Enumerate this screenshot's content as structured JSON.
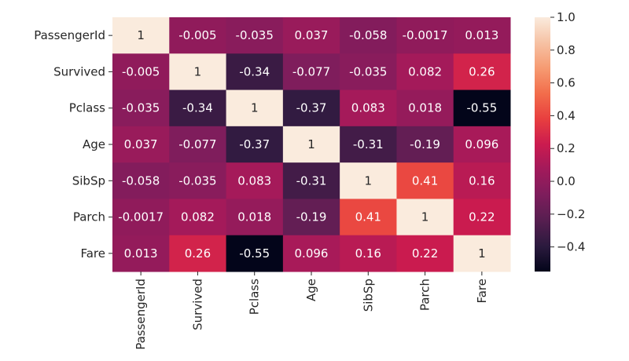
{
  "chart_data": {
    "type": "heatmap",
    "title": "",
    "xlabel": "",
    "ylabel": "",
    "row_labels": [
      "PassengerId",
      "Survived",
      "Pclass",
      "Age",
      "SibSp",
      "Parch",
      "Fare"
    ],
    "col_labels": [
      "PassengerId",
      "Survived",
      "Pclass",
      "Age",
      "SibSp",
      "Parch",
      "Fare"
    ],
    "values": [
      [
        1,
        -0.005,
        -0.035,
        0.037,
        -0.058,
        -0.0017,
        0.013
      ],
      [
        -0.005,
        1,
        -0.34,
        -0.077,
        -0.035,
        0.082,
        0.26
      ],
      [
        -0.035,
        -0.34,
        1,
        -0.37,
        0.083,
        0.018,
        -0.55
      ],
      [
        0.037,
        -0.077,
        -0.37,
        1,
        -0.31,
        -0.19,
        0.096
      ],
      [
        -0.058,
        -0.035,
        0.083,
        -0.31,
        1,
        0.41,
        0.16
      ],
      [
        -0.0017,
        0.082,
        0.018,
        -0.19,
        0.41,
        1,
        0.22
      ],
      [
        0.013,
        0.26,
        -0.55,
        0.096,
        0.16,
        0.22,
        1
      ]
    ],
    "annotations": [
      [
        "1",
        "-0.005",
        "-0.035",
        "0.037",
        "-0.058",
        "-0.0017",
        "0.013"
      ],
      [
        "-0.005",
        "1",
        "-0.34",
        "-0.077",
        "-0.035",
        "0.082",
        "0.26"
      ],
      [
        "-0.035",
        "-0.34",
        "1",
        "-0.37",
        "0.083",
        "0.018",
        "-0.55"
      ],
      [
        "0.037",
        "-0.077",
        "-0.37",
        "1",
        "-0.31",
        "-0.19",
        "0.096"
      ],
      [
        "-0.058",
        "-0.035",
        "0.083",
        "-0.31",
        "1",
        "0.41",
        "0.16"
      ],
      [
        "-0.0017",
        "0.082",
        "0.018",
        "-0.19",
        "0.41",
        "1",
        "0.22"
      ],
      [
        "0.013",
        "0.26",
        "-0.55",
        "0.096",
        "0.16",
        "0.22",
        "1"
      ]
    ],
    "colormap": "rocket",
    "color_range": [
      -0.55,
      1.0
    ],
    "colorbar": {
      "ticks": [
        1.0,
        0.8,
        0.6,
        0.4,
        0.2,
        0.0,
        -0.2,
        -0.4
      ],
      "tick_labels": [
        "1.0",
        "0.8",
        "0.6",
        "0.4",
        "0.2",
        "0.0",
        "−0.2",
        "−0.4"
      ],
      "placement": "right"
    },
    "colormap_stops": [
      "#03051a",
      "#2b1a3e",
      "#561e50",
      "#7d1d5c",
      "#a11a5b",
      "#cb1b4f",
      "#e83f3f",
      "#f26d4b",
      "#f69b72",
      "#f6c2a4",
      "#faebdd"
    ],
    "text_color_dark_bg": "#ffffff",
    "text_color_light_bg": "#262626"
  }
}
